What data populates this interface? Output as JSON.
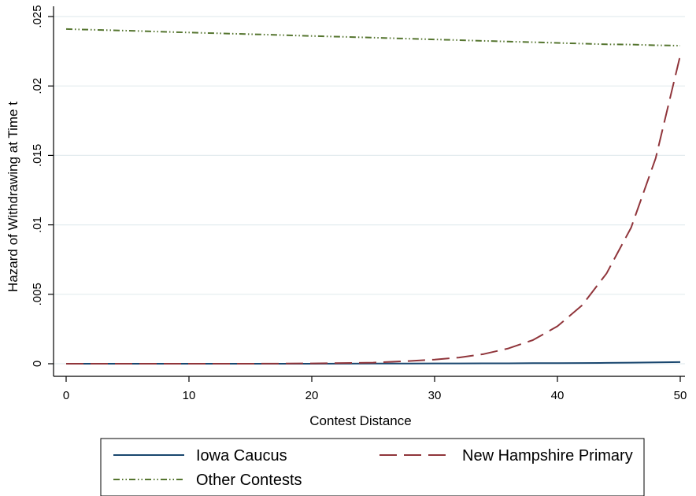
{
  "chart_data": {
    "type": "line",
    "xlabel": "Contest Distance",
    "ylabel": "Hazard of Withdrawing at Time t",
    "xlim": [
      0,
      50
    ],
    "ylim": [
      0,
      0.025
    ],
    "x_ticks": [
      0,
      10,
      20,
      30,
      40,
      50
    ],
    "x_tick_labels": [
      "0",
      "10",
      "20",
      "30",
      "40",
      "50"
    ],
    "y_ticks": [
      0,
      0.005,
      0.01,
      0.015,
      0.02,
      0.025
    ],
    "y_tick_labels": [
      "0",
      ".005",
      ".01",
      ".015",
      ".02",
      ".025"
    ],
    "grid": "horizontal",
    "legend_position": "bottom",
    "x": [
      0,
      5,
      10,
      15,
      20,
      25,
      28,
      30,
      32,
      34,
      36,
      38,
      40,
      42,
      44,
      46,
      48,
      50
    ],
    "series": [
      {
        "name": "Iowa Caucus",
        "color": "#1a476f",
        "dash": "solid",
        "values": [
          0,
          0,
          0,
          0,
          0,
          1e-05,
          1e-05,
          2e-05,
          2e-05,
          3e-05,
          3e-05,
          4e-05,
          4e-05,
          5e-05,
          6e-05,
          8e-05,
          0.0001,
          0.00012
        ]
      },
      {
        "name": "New Hampshire Primary",
        "color": "#90353b",
        "dash": "long-dash",
        "values": [
          0,
          0,
          0,
          0,
          2e-05,
          8e-05,
          0.0002,
          0.0003,
          0.00045,
          0.0007,
          0.0011,
          0.0017,
          0.0027,
          0.0042,
          0.0065,
          0.0098,
          0.0148,
          0.0222
        ]
      },
      {
        "name": "Other Contests",
        "color": "#55752f",
        "dash": "dash-dot-dot",
        "values": [
          0.0241,
          0.02398,
          0.02385,
          0.02373,
          0.0236,
          0.02348,
          0.0234,
          0.02335,
          0.0233,
          0.02325,
          0.0232,
          0.02315,
          0.0231,
          0.02305,
          0.023,
          0.02298,
          0.02293,
          0.0229
        ]
      }
    ]
  }
}
